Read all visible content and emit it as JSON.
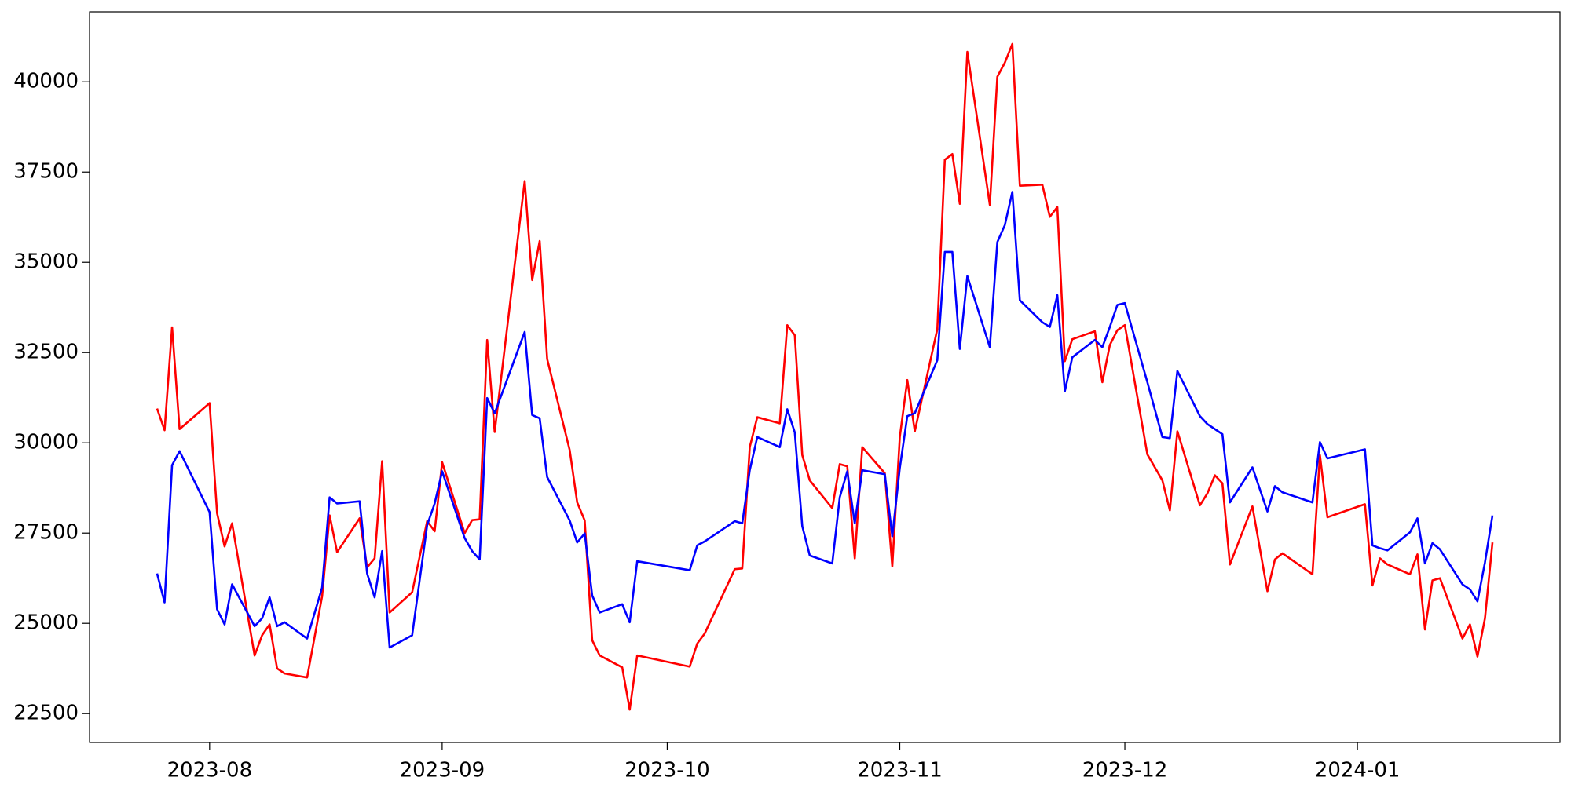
{
  "chart_data": {
    "type": "line",
    "x": [
      "2023-07-25",
      "2023-07-26",
      "2023-07-27",
      "2023-07-28",
      "2023-08-01",
      "2023-08-02",
      "2023-08-03",
      "2023-08-04",
      "2023-08-07",
      "2023-08-08",
      "2023-08-09",
      "2023-08-10",
      "2023-08-11",
      "2023-08-14",
      "2023-08-16",
      "2023-08-17",
      "2023-08-18",
      "2023-08-21",
      "2023-08-22",
      "2023-08-23",
      "2023-08-24",
      "2023-08-25",
      "2023-08-28",
      "2023-08-30",
      "2023-08-31",
      "2023-09-01",
      "2023-09-04",
      "2023-09-05",
      "2023-09-06",
      "2023-09-07",
      "2023-09-08",
      "2023-09-12",
      "2023-09-13",
      "2023-09-14",
      "2023-09-15",
      "2023-09-18",
      "2023-09-19",
      "2023-09-20",
      "2023-09-21",
      "2023-09-22",
      "2023-09-25",
      "2023-09-26",
      "2023-09-27",
      "2023-10-04",
      "2023-10-05",
      "2023-10-06",
      "2023-10-10",
      "2023-10-11",
      "2023-10-12",
      "2023-10-13",
      "2023-10-16",
      "2023-10-17",
      "2023-10-18",
      "2023-10-19",
      "2023-10-20",
      "2023-10-23",
      "2023-10-24",
      "2023-10-25",
      "2023-10-26",
      "2023-10-27",
      "2023-10-30",
      "2023-10-31",
      "2023-11-01",
      "2023-11-02",
      "2023-11-03",
      "2023-11-06",
      "2023-11-07",
      "2023-11-08",
      "2023-11-09",
      "2023-11-10",
      "2023-11-13",
      "2023-11-14",
      "2023-11-15",
      "2023-11-16",
      "2023-11-17",
      "2023-11-20",
      "2023-11-21",
      "2023-11-22",
      "2023-11-23",
      "2023-11-24",
      "2023-11-27",
      "2023-11-28",
      "2023-11-29",
      "2023-11-30",
      "2023-12-01",
      "2023-12-04",
      "2023-12-06",
      "2023-12-07",
      "2023-12-08",
      "2023-12-11",
      "2023-12-12",
      "2023-12-13",
      "2023-12-14",
      "2023-12-15",
      "2023-12-18",
      "2023-12-20",
      "2023-12-21",
      "2023-12-22",
      "2023-12-26",
      "2023-12-27",
      "2023-12-28",
      "2024-01-02",
      "2024-01-03",
      "2024-01-04",
      "2024-01-05",
      "2024-01-08",
      "2024-01-09",
      "2024-01-10",
      "2024-01-11",
      "2024-01-12",
      "2024-01-15",
      "2024-01-16",
      "2024-01-17",
      "2024-01-18",
      "2024-01-19"
    ],
    "series": [
      {
        "color": "#ff0000",
        "values": [
          30950,
          30350,
          33200,
          30380,
          31100,
          28050,
          27130,
          27770,
          24110,
          24670,
          24970,
          23750,
          23610,
          23500,
          25750,
          27990,
          26970,
          27910,
          26550,
          26800,
          29490,
          25300,
          25860,
          27830,
          27550,
          29460,
          27500,
          27860,
          27880,
          32850,
          30300,
          37250,
          34510,
          35590,
          32320,
          29800,
          28350,
          27850,
          24530,
          24110,
          23780,
          22610,
          24110,
          23800,
          24440,
          24720,
          26500,
          26520,
          29880,
          30710,
          30540,
          33260,
          32980,
          29660,
          28960,
          28190,
          29410,
          29350,
          26800,
          29880,
          29160,
          26580,
          30160,
          31740,
          30320,
          33150,
          37840,
          38000,
          36620,
          40830,
          36590,
          40140,
          40530,
          41050,
          37120,
          37150,
          36260,
          36530,
          32260,
          32870,
          33090,
          31680,
          32710,
          33120,
          33260,
          29680,
          28960,
          28130,
          30320,
          28270,
          28600,
          29100,
          28880,
          26630,
          28240,
          25890,
          26770,
          26940,
          26360,
          29660,
          27940,
          28300,
          26050,
          26800,
          26630,
          26360,
          26910,
          24830,
          26190,
          26250,
          24580,
          24970,
          24080,
          25140,
          27240
        ]
      },
      {
        "color": "#0000ff",
        "values": [
          26380,
          25580,
          29380,
          29770,
          28080,
          25390,
          24970,
          26080,
          24920,
          25140,
          25720,
          24920,
          25030,
          24580,
          25990,
          28490,
          28320,
          28380,
          26380,
          25720,
          27000,
          24330,
          24670,
          27720,
          28320,
          29210,
          27360,
          27000,
          26770,
          31240,
          30820,
          33070,
          30770,
          30680,
          29050,
          27850,
          27240,
          27490,
          25770,
          25300,
          25530,
          25030,
          26720,
          26470,
          27160,
          27270,
          27830,
          27770,
          29240,
          30160,
          29880,
          30930,
          30290,
          27690,
          26880,
          26660,
          28490,
          29210,
          27770,
          29240,
          29130,
          27410,
          29300,
          30740,
          30820,
          32290,
          35290,
          35290,
          32600,
          34620,
          32650,
          35560,
          36030,
          36950,
          33950,
          33340,
          33210,
          34090,
          31430,
          32370,
          32850,
          32650,
          33210,
          33820,
          33870,
          31680,
          30160,
          30130,
          31990,
          30740,
          30520,
          30380,
          30240,
          28350,
          29320,
          28100,
          28800,
          28630,
          28350,
          30020,
          29570,
          29820,
          27160,
          27080,
          27020,
          27520,
          27910,
          26660,
          27220,
          27050,
          26080,
          25940,
          25610,
          26690,
          27990
        ]
      }
    ],
    "xlim": [
      "2023-07-16",
      "2024-01-28"
    ],
    "xticks": [
      {
        "value": "2023-08-01",
        "label": "2023-08"
      },
      {
        "value": "2023-09-01",
        "label": "2023-09"
      },
      {
        "value": "2023-10-01",
        "label": "2023-10"
      },
      {
        "value": "2023-11-01",
        "label": "2023-11"
      },
      {
        "value": "2023-12-01",
        "label": "2023-12"
      },
      {
        "value": "2024-01-01",
        "label": "2024-01"
      }
    ],
    "ylim": [
      21700,
      41940
    ],
    "yticks": [
      22500,
      25000,
      27500,
      30000,
      32500,
      35000,
      37500,
      40000
    ]
  }
}
